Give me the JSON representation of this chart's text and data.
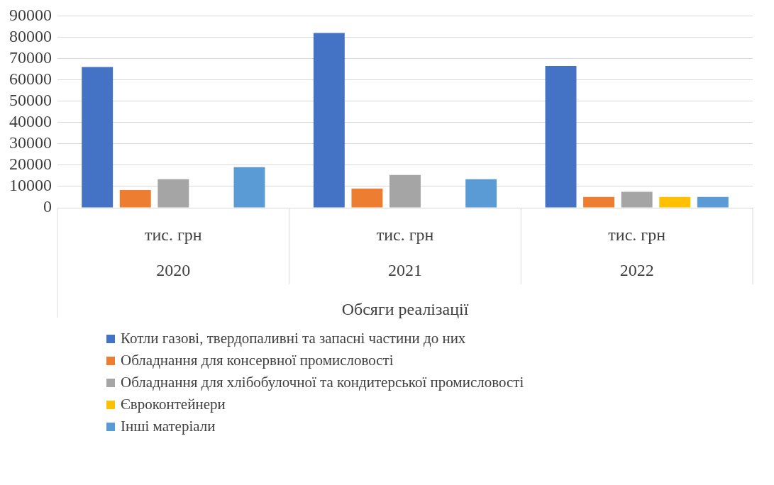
{
  "chart_data": {
    "type": "bar",
    "categories": [
      "2020",
      "2021",
      "2022"
    ],
    "series": [
      {
        "name": "Котли газові, твердопаливні та запасні частини до них",
        "color": "#4472c4",
        "values": [
          66000,
          82000,
          66500
        ]
      },
      {
        "name": "Обладнання для консервної промисловості",
        "color": "#ed7d31",
        "values": [
          8300,
          9000,
          5100
        ]
      },
      {
        "name": "Обладнання для хлібобулочної та кондитерської промисловості",
        "color": "#a5a5a5",
        "values": [
          13400,
          15400,
          7500
        ]
      },
      {
        "name": "Євроконтейнери",
        "color": "#ffc000",
        "values": [
          null,
          null,
          5100
        ]
      },
      {
        "name": "Інші матеріали",
        "color": "#5b9bd5",
        "values": [
          19000,
          13400,
          5100
        ]
      }
    ],
    "annotations": [
      "тис. грн",
      "тис. грн",
      "тис. грн"
    ],
    "xlabel": "Обсяги реалізації",
    "ylim": [
      0,
      90000
    ],
    "yticks": [
      0,
      10000,
      20000,
      30000,
      40000,
      50000,
      60000,
      70000,
      80000,
      90000
    ],
    "grid": "y",
    "legend": "bottom"
  }
}
